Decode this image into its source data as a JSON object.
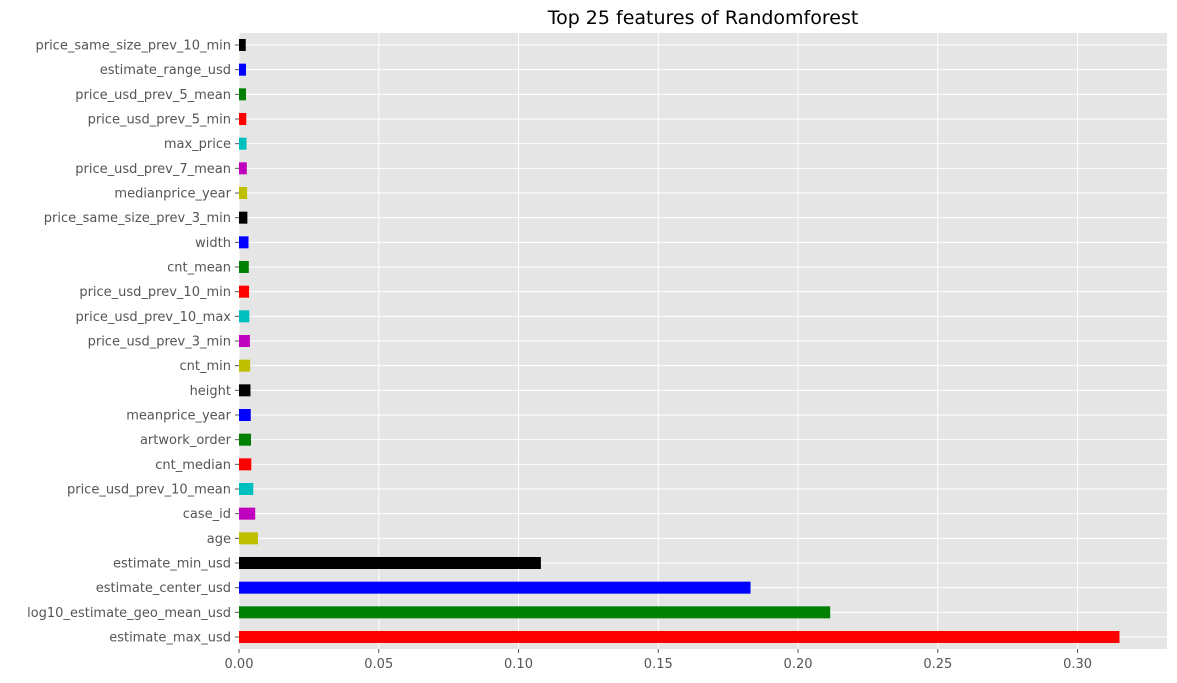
{
  "chart_data": {
    "type": "bar",
    "orientation": "horizontal",
    "title": "Top 25 features of Randomforest",
    "xlabel": "",
    "ylabel": "",
    "xlim": [
      0,
      0.332
    ],
    "xticks": [
      "0.00",
      "0.05",
      "0.10",
      "0.15",
      "0.20",
      "0.25",
      "0.30"
    ],
    "xtick_values": [
      0,
      0.05,
      0.1,
      0.15,
      0.2,
      0.25,
      0.3
    ],
    "grid": true,
    "legend": "none",
    "background_color": "#e5e5e5",
    "grid_color": "#ffffff",
    "categories": [
      "estimate_max_usd",
      "log10_estimate_geo_mean_usd",
      "estimate_center_usd",
      "estimate_min_usd",
      "age",
      "case_id",
      "price_usd_prev_10_mean",
      "cnt_median",
      "artwork_order",
      "meanprice_year",
      "height",
      "cnt_min",
      "price_usd_prev_3_min",
      "price_usd_prev_10_max",
      "price_usd_prev_10_min",
      "cnt_mean",
      "width",
      "price_same_size_prev_3_min",
      "medianprice_year",
      "price_usd_prev_7_mean",
      "max_price",
      "price_usd_prev_5_min",
      "price_usd_prev_5_mean",
      "estimate_range_usd",
      "price_same_size_prev_10_min"
    ],
    "values": [
      0.315,
      0.2115,
      0.183,
      0.108,
      0.0068,
      0.0058,
      0.0051,
      0.0044,
      0.0043,
      0.0042,
      0.0041,
      0.004,
      0.0039,
      0.0037,
      0.0036,
      0.0035,
      0.0034,
      0.003,
      0.0029,
      0.0028,
      0.0027,
      0.0026,
      0.0025,
      0.0025,
      0.0024
    ],
    "colors": [
      "#ff0000",
      "#008000",
      "#0000ff",
      "#000000",
      "#bfbf00",
      "#bf00bf",
      "#00bfbf",
      "#ff0000",
      "#008000",
      "#0000ff",
      "#000000",
      "#bfbf00",
      "#bf00bf",
      "#00bfbf",
      "#ff0000",
      "#008000",
      "#0000ff",
      "#000000",
      "#bfbf00",
      "#bf00bf",
      "#00bfbf",
      "#ff0000",
      "#008000",
      "#0000ff",
      "#000000"
    ]
  }
}
